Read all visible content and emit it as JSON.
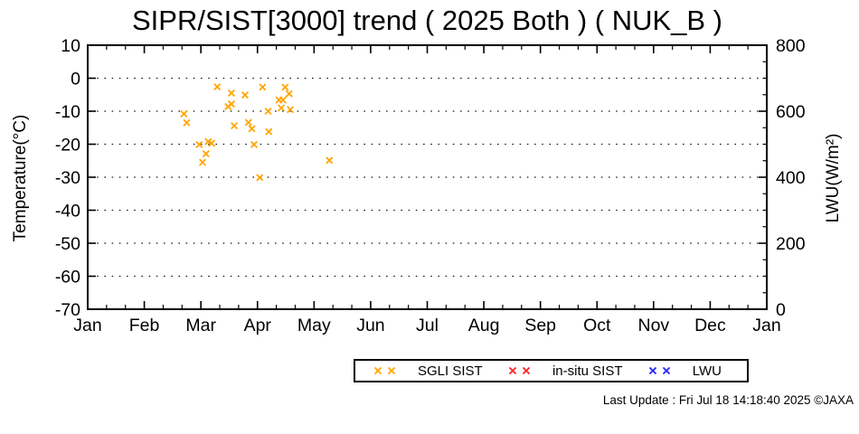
{
  "page": {
    "background": "#ffffff"
  },
  "chart_data": {
    "type": "scatter",
    "title": "SIPR/SIST[3000] trend ( 2025 Both ) ( NUK_B )",
    "x_axis": {
      "tick_labels": [
        "Jan",
        "Feb",
        "Mar",
        "Apr",
        "May",
        "Jun",
        "Jul",
        "Aug",
        "Sep",
        "Oct",
        "Nov",
        "Dec",
        "Jan"
      ],
      "minor_ticks_per_month": 2
    },
    "y_left": {
      "label": "Temperature(°C)",
      "min": -70,
      "max": 10,
      "tick_values": [
        10,
        0,
        -10,
        -20,
        -30,
        -40,
        -50,
        -60,
        -70
      ]
    },
    "y_right": {
      "label": "LWU(W/m²)",
      "min": 0,
      "max": 800,
      "labeled_tick_values": [
        800,
        600,
        400,
        200,
        0
      ],
      "minor_tick_step": 50,
      "major_tick_step": 200
    },
    "grid_temps": [
      0,
      -10,
      -20,
      -30,
      -40,
      -50,
      -60
    ],
    "grid_style": "dotted",
    "legend_position": "below-chart",
    "series": [
      {
        "name": "SGLI SIST",
        "color": "#FFA500",
        "marker": "x",
        "points_month_temp": [
          [
            1.7,
            -10.8
          ],
          [
            1.75,
            -13.5
          ],
          [
            1.97,
            -20.1
          ],
          [
            2.03,
            -25.5
          ],
          [
            2.09,
            -22.9
          ],
          [
            2.13,
            -19.2
          ],
          [
            2.19,
            -19.7
          ],
          [
            2.29,
            -2.6
          ],
          [
            2.48,
            -8.6
          ],
          [
            2.54,
            -4.5
          ],
          [
            2.54,
            -7.8
          ],
          [
            2.59,
            -14.4
          ],
          [
            2.78,
            -5.1
          ],
          [
            2.84,
            -13.4
          ],
          [
            2.9,
            -15.3
          ],
          [
            2.94,
            -20.1
          ],
          [
            3.04,
            -30.1
          ],
          [
            3.09,
            -2.7
          ],
          [
            3.19,
            -10.0
          ],
          [
            3.2,
            -16.2
          ],
          [
            3.38,
            -6.6
          ],
          [
            3.42,
            -9.0
          ],
          [
            3.45,
            -6.6
          ],
          [
            3.49,
            -2.7
          ],
          [
            3.56,
            -4.7
          ],
          [
            3.58,
            -9.5
          ],
          [
            4.27,
            -24.9
          ]
        ]
      },
      {
        "name": "in-situ SIST",
        "color": "#FF2222",
        "marker": "x",
        "points_month_temp": []
      },
      {
        "name": "LWU",
        "color": "#2222FF",
        "marker": "x",
        "points_month_temp": []
      }
    ]
  },
  "footer": {
    "last_update": "Last Update : Fri Jul 18 14:18:40 2025  ©JAXA"
  }
}
